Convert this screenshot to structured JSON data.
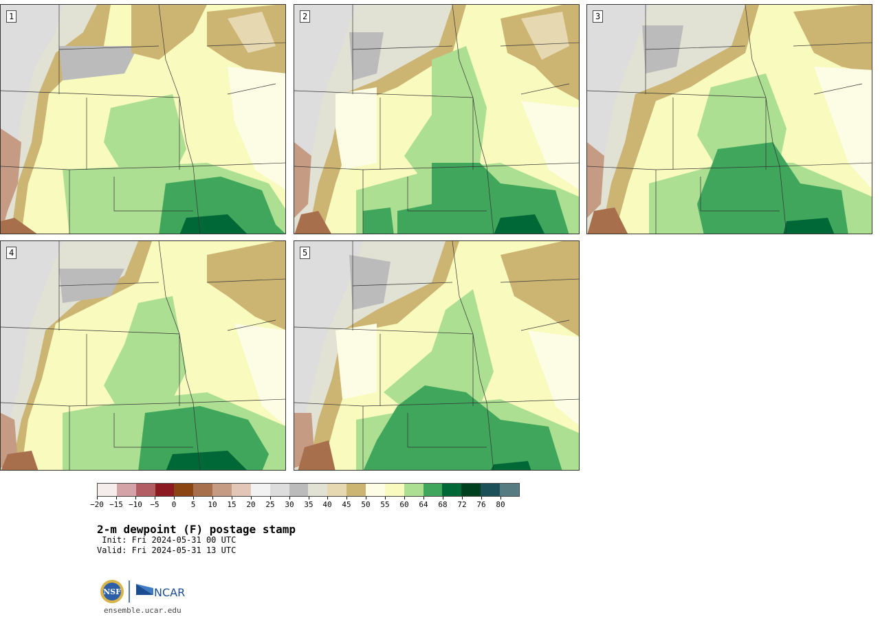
{
  "panels": [
    {
      "number": "1"
    },
    {
      "number": "2"
    },
    {
      "number": "3"
    },
    {
      "number": "4"
    },
    {
      "number": "5"
    }
  ],
  "colorbar": {
    "colors": [
      "#f5ecec",
      "#d4a3a8",
      "#b25c64",
      "#8c1a22",
      "#8a4512",
      "#a86f4c",
      "#c59b84",
      "#e2c7b6",
      "#f2f2f2",
      "#dddddd",
      "#bbbbbb",
      "#e1e1d4",
      "#e6d8b0",
      "#ccb473",
      "#fdfde6",
      "#f8fbbd",
      "#acdf92",
      "#3fa65b",
      "#006837",
      "#00401f",
      "#1b5058",
      "#567b80"
    ],
    "ticks": [
      "−20",
      "−15",
      "−10",
      "−5",
      "0",
      "5",
      "10",
      "15",
      "20",
      "25",
      "30",
      "35",
      "40",
      "45",
      "50",
      "55",
      "60",
      "64",
      "68",
      "72",
      "76",
      "80"
    ]
  },
  "title": "2-m dewpoint (F) postage stamp",
  "init": " Init: Fri 2024-05-31 00 UTC",
  "valid": "Valid: Fri 2024-05-31 13 UTC",
  "logos": {
    "nsf_text": "NSF",
    "ncar_text": "NCAR"
  },
  "site": "ensemble.ucar.edu"
}
